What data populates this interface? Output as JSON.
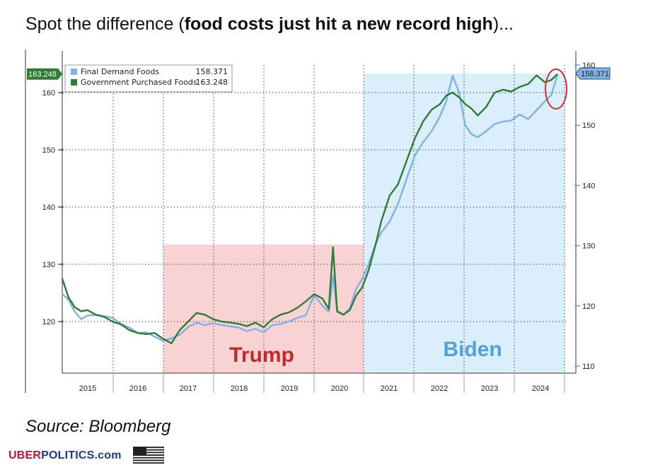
{
  "headline": {
    "prefix": "Spot the difference (",
    "bold": "food costs just hit a new record high",
    "suffix": ")..."
  },
  "source": "Source: Bloomberg",
  "brand": {
    "red": "UBER",
    "blue": "POLITICS.com"
  },
  "colors": {
    "final_demand": "#7fb2e5",
    "gov_purchased": "#2e7d32",
    "trump_band": "#f9d3d3",
    "biden_band": "#daeefb",
    "trump_text": "#c62828",
    "biden_text": "#4fa3dc",
    "callout_circle": "#d32f2f"
  },
  "chart_data": {
    "type": "line",
    "x_ticks": [
      "2015",
      "2016",
      "2017",
      "2018",
      "2019",
      "2020",
      "2021",
      "2022",
      "2023",
      "2024"
    ],
    "left_axis": {
      "ticks": [
        120,
        130,
        140,
        150,
        160
      ],
      "ylim": [
        110,
        170
      ]
    },
    "right_axis": {
      "ticks": [
        110,
        120,
        130,
        140,
        150,
        160
      ],
      "ylim": [
        109,
        161
      ]
    },
    "left_badge": "163.248",
    "right_badge": "158.371",
    "legend": [
      {
        "name": "Final Demand Foods",
        "value": "158.371"
      },
      {
        "name": "Government Purchased Foods",
        "value": "163.248"
      }
    ],
    "bands": [
      {
        "label": "Trump",
        "start": 2017.0,
        "end": 2021.0
      },
      {
        "label": "Biden",
        "start": 2021.0,
        "end": 2025.0
      }
    ],
    "series": [
      {
        "name": "Final Demand Foods",
        "axis": "right",
        "points": [
          [
            2014.0,
            122.0
          ],
          [
            2014.15,
            121.0
          ],
          [
            2014.3,
            119.0
          ],
          [
            2014.45,
            117.8
          ],
          [
            2014.6,
            118.4
          ],
          [
            2014.8,
            118.5
          ],
          [
            2015.0,
            118.3
          ],
          [
            2015.2,
            118.0
          ],
          [
            2015.4,
            117.0
          ],
          [
            2015.6,
            116.4
          ],
          [
            2015.8,
            115.5
          ],
          [
            2016.0,
            115.6
          ],
          [
            2016.2,
            114.9
          ],
          [
            2016.4,
            114.2
          ],
          [
            2016.6,
            114.6
          ],
          [
            2016.8,
            115.2
          ],
          [
            2017.0,
            116.5
          ],
          [
            2017.2,
            117.2
          ],
          [
            2017.4,
            116.8
          ],
          [
            2017.6,
            117.1
          ],
          [
            2017.8,
            116.8
          ],
          [
            2018.0,
            116.6
          ],
          [
            2018.2,
            116.4
          ],
          [
            2018.4,
            115.8
          ],
          [
            2018.6,
            116.2
          ],
          [
            2018.8,
            115.6
          ],
          [
            2019.0,
            116.8
          ],
          [
            2019.2,
            117.0
          ],
          [
            2019.4,
            117.4
          ],
          [
            2019.6,
            118.0
          ],
          [
            2019.8,
            118.4
          ],
          [
            2020.0,
            121.8
          ],
          [
            2020.2,
            120.0
          ],
          [
            2020.35,
            119.0
          ],
          [
            2020.45,
            125.0
          ],
          [
            2020.55,
            119.0
          ],
          [
            2020.7,
            118.5
          ],
          [
            2020.85,
            119.6
          ],
          [
            2021.0,
            122.8
          ],
          [
            2021.15,
            124.5
          ],
          [
            2021.3,
            127.0
          ],
          [
            2021.45,
            130.0
          ],
          [
            2021.6,
            132.2
          ],
          [
            2021.8,
            134.0
          ],
          [
            2022.0,
            137.0
          ],
          [
            2022.2,
            141.0
          ],
          [
            2022.4,
            145.0
          ],
          [
            2022.6,
            147.2
          ],
          [
            2022.8,
            149.0
          ],
          [
            2023.0,
            151.5
          ],
          [
            2023.15,
            154.0
          ],
          [
            2023.3,
            158.2
          ],
          [
            2023.45,
            155.5
          ],
          [
            2023.6,
            150.0
          ],
          [
            2023.75,
            148.5
          ],
          [
            2023.9,
            148.0
          ],
          [
            2024.1,
            149.0
          ],
          [
            2024.3,
            150.2
          ],
          [
            2024.5,
            150.6
          ],
          [
            2024.7,
            150.8
          ],
          [
            2024.9,
            151.8
          ],
          [
            2025.1,
            151.0
          ],
          [
            2025.3,
            152.5
          ],
          [
            2025.5,
            154.0
          ],
          [
            2025.65,
            155.0
          ],
          [
            2025.8,
            158.371
          ]
        ]
      },
      {
        "name": "Government Purchased Foods",
        "axis": "left",
        "points": [
          [
            2014.0,
            127.5
          ],
          [
            2014.15,
            124.2
          ],
          [
            2014.3,
            122.5
          ],
          [
            2014.45,
            121.8
          ],
          [
            2014.6,
            122.0
          ],
          [
            2014.8,
            121.2
          ],
          [
            2015.0,
            120.8
          ],
          [
            2015.2,
            120.0
          ],
          [
            2015.4,
            119.5
          ],
          [
            2015.6,
            118.5
          ],
          [
            2015.8,
            118.0
          ],
          [
            2016.0,
            117.8
          ],
          [
            2016.2,
            118.0
          ],
          [
            2016.4,
            117.0
          ],
          [
            2016.6,
            116.2
          ],
          [
            2016.8,
            118.5
          ],
          [
            2017.0,
            120.0
          ],
          [
            2017.2,
            121.5
          ],
          [
            2017.4,
            121.2
          ],
          [
            2017.6,
            120.4
          ],
          [
            2017.8,
            120.0
          ],
          [
            2018.0,
            119.8
          ],
          [
            2018.2,
            119.6
          ],
          [
            2018.4,
            119.2
          ],
          [
            2018.6,
            119.8
          ],
          [
            2018.8,
            119.0
          ],
          [
            2019.0,
            120.4
          ],
          [
            2019.2,
            121.2
          ],
          [
            2019.4,
            121.6
          ],
          [
            2019.6,
            122.4
          ],
          [
            2019.8,
            123.5
          ],
          [
            2020.0,
            124.8
          ],
          [
            2020.2,
            124.0
          ],
          [
            2020.35,
            122.2
          ],
          [
            2020.45,
            133.0
          ],
          [
            2020.55,
            121.8
          ],
          [
            2020.7,
            121.2
          ],
          [
            2020.85,
            122.0
          ],
          [
            2021.0,
            124.5
          ],
          [
            2021.15,
            126.0
          ],
          [
            2021.3,
            129.0
          ],
          [
            2021.45,
            133.0
          ],
          [
            2021.6,
            137.5
          ],
          [
            2021.8,
            142.0
          ],
          [
            2022.0,
            144.0
          ],
          [
            2022.2,
            148.0
          ],
          [
            2022.4,
            152.0
          ],
          [
            2022.6,
            155.0
          ],
          [
            2022.8,
            157.0
          ],
          [
            2023.0,
            158.0
          ],
          [
            2023.15,
            159.5
          ],
          [
            2023.3,
            160.0
          ],
          [
            2023.45,
            159.2
          ],
          [
            2023.6,
            158.0
          ],
          [
            2023.75,
            157.2
          ],
          [
            2023.9,
            156.0
          ],
          [
            2024.1,
            157.5
          ],
          [
            2024.3,
            160.0
          ],
          [
            2024.5,
            160.5
          ],
          [
            2024.7,
            160.2
          ],
          [
            2024.9,
            161.0
          ],
          [
            2025.1,
            161.5
          ],
          [
            2025.3,
            163.0
          ],
          [
            2025.5,
            161.8
          ],
          [
            2025.65,
            162.2
          ],
          [
            2025.8,
            163.248
          ]
        ]
      }
    ]
  }
}
